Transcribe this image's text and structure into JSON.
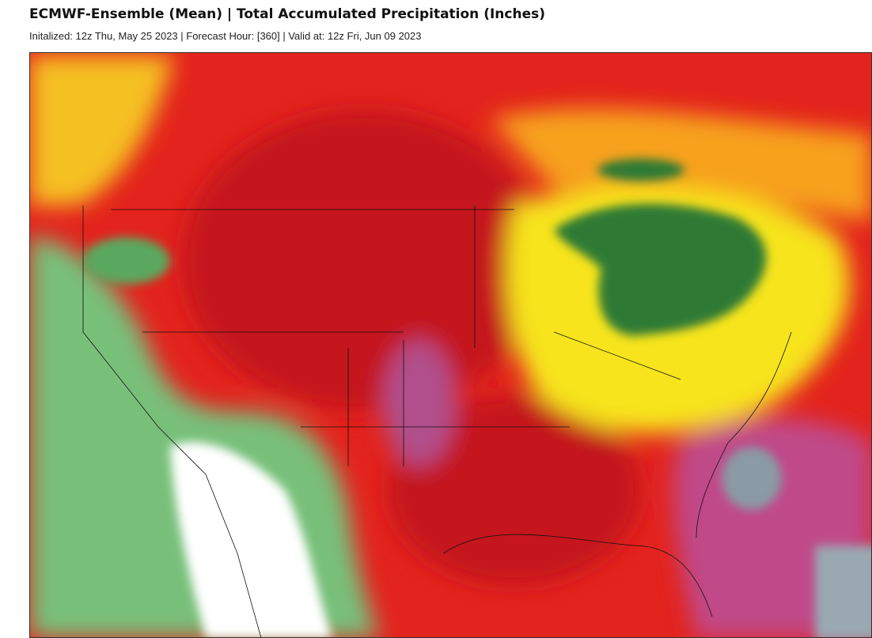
{
  "header": {
    "title": "ECMWF-Ensemble (Mean) | Total Accumulated Precipitation (Inches)",
    "subtitle": "Initalized: 12z Thu, May 25 2023 | Forecast Hour: [360] | Valid at: 12z Fri, Jun 09 2023"
  }
}
